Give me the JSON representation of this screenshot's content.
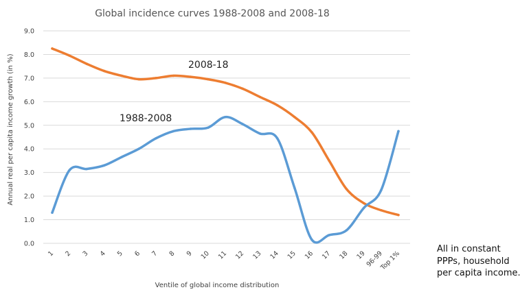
{
  "chart_data": {
    "type": "line",
    "title": "Global incidence curves 1988-2008 and 2008-18",
    "xlabel": "Ventile of global income distribution",
    "ylabel": "Annual real per capita income growth (in %)",
    "ylim": [
      0,
      9
    ],
    "yticks": [
      "0.0",
      "1.0",
      "2.0",
      "3.0",
      "4.0",
      "5.0",
      "6.0",
      "7.0",
      "8.0",
      "9.0"
    ],
    "grid": true,
    "categories": [
      "1",
      "2",
      "3",
      "4",
      "5",
      "6",
      "7",
      "8",
      "9",
      "10",
      "11",
      "12",
      "13",
      "14",
      "15",
      "16",
      "17",
      "18",
      "19",
      "96-99",
      "Top 1%"
    ],
    "series": [
      {
        "name": "2008-18",
        "color": "#ED7D31",
        "values": [
          8.25,
          7.95,
          7.6,
          7.3,
          7.1,
          6.95,
          7.0,
          7.1,
          7.05,
          6.95,
          6.8,
          6.55,
          6.2,
          5.85,
          5.35,
          4.7,
          3.5,
          2.3,
          1.7,
          1.4,
          1.2
        ]
      },
      {
        "name": "1988-2008",
        "color": "#5B9BD5",
        "values": [
          1.3,
          3.1,
          3.15,
          3.3,
          3.65,
          4.0,
          4.45,
          4.75,
          4.85,
          4.9,
          5.35,
          5.05,
          4.65,
          4.45,
          2.35,
          0.15,
          0.35,
          0.55,
          1.5,
          2.25,
          4.75
        ]
      }
    ]
  },
  "note": {
    "lines": [
      "All in constant",
      "PPPs, household",
      "per capita income."
    ]
  }
}
